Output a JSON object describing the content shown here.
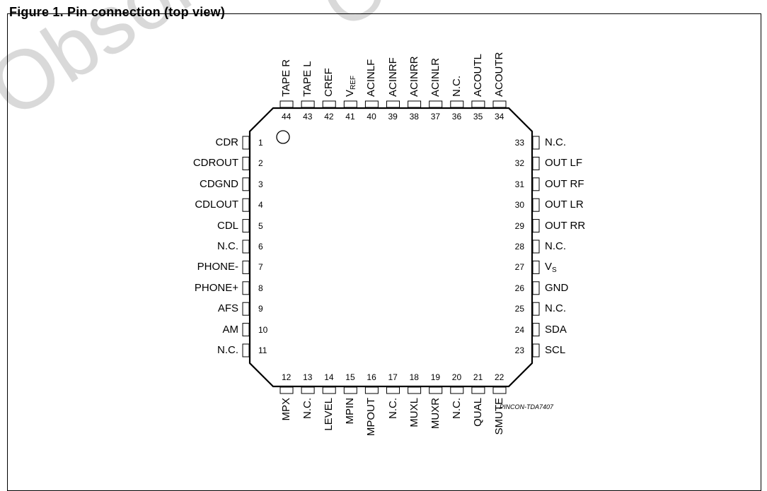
{
  "figure_title": "Figure 1. Pin connection (top view)",
  "watermark": "Obsolete Product(s) - Obsolete Product(s)",
  "drawing_code": "PINCON-TDA7407",
  "pins_left": [
    {
      "num": "1",
      "name": "CDR"
    },
    {
      "num": "2",
      "name": "CDROUT"
    },
    {
      "num": "3",
      "name": "CDGND"
    },
    {
      "num": "4",
      "name": "CDLOUT"
    },
    {
      "num": "5",
      "name": "CDL"
    },
    {
      "num": "6",
      "name": "N.C."
    },
    {
      "num": "7",
      "name": "PHONE-"
    },
    {
      "num": "8",
      "name": "PHONE+"
    },
    {
      "num": "9",
      "name": "AFS"
    },
    {
      "num": "10",
      "name": "AM"
    },
    {
      "num": "11",
      "name": "N.C."
    }
  ],
  "pins_bottom": [
    {
      "num": "12",
      "name": "MPX"
    },
    {
      "num": "13",
      "name": "N.C."
    },
    {
      "num": "14",
      "name": "LEVEL"
    },
    {
      "num": "15",
      "name": "MPIN"
    },
    {
      "num": "16",
      "name": "MPOUT"
    },
    {
      "num": "17",
      "name": "N.C."
    },
    {
      "num": "18",
      "name": "MUXL"
    },
    {
      "num": "19",
      "name": "MUXR"
    },
    {
      "num": "20",
      "name": "N.C."
    },
    {
      "num": "21",
      "name": "QUAL"
    },
    {
      "num": "22",
      "name": "SMUTE"
    }
  ],
  "pins_right": [
    {
      "num": "33",
      "name": "N.C."
    },
    {
      "num": "32",
      "name": "OUT LF"
    },
    {
      "num": "31",
      "name": "OUT RF"
    },
    {
      "num": "30",
      "name": "OUT LR"
    },
    {
      "num": "29",
      "name": "OUT RR"
    },
    {
      "num": "28",
      "name": "N.C."
    },
    {
      "num": "27",
      "name": "V",
      "sub": "S"
    },
    {
      "num": "26",
      "name": "GND"
    },
    {
      "num": "25",
      "name": "N.C."
    },
    {
      "num": "24",
      "name": "SDA"
    },
    {
      "num": "23",
      "name": "SCL"
    }
  ],
  "pins_top": [
    {
      "num": "44",
      "name": "TAPE R"
    },
    {
      "num": "43",
      "name": "TAPE L"
    },
    {
      "num": "42",
      "name": "CREF"
    },
    {
      "num": "41",
      "name": "V",
      "sub": "REF"
    },
    {
      "num": "40",
      "name": "ACINLF"
    },
    {
      "num": "39",
      "name": "ACINRF"
    },
    {
      "num": "38",
      "name": "ACINRR"
    },
    {
      "num": "37",
      "name": "ACINLR"
    },
    {
      "num": "36",
      "name": "N.C."
    },
    {
      "num": "35",
      "name": "ACOUTL"
    },
    {
      "num": "34",
      "name": "ACOUTR"
    }
  ]
}
